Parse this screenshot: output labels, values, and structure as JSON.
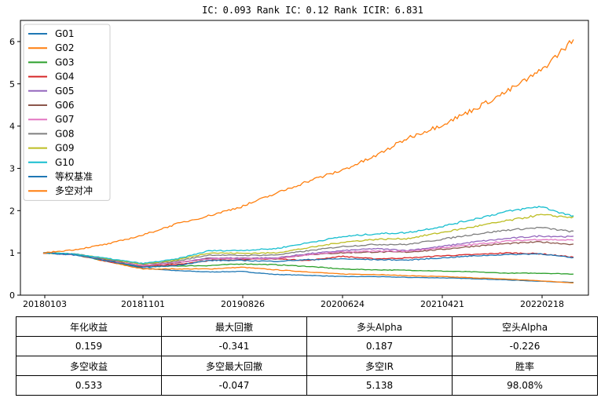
{
  "chart_data": {
    "type": "line",
    "title": "IC：0.093    Rank IC：0.12    Rank ICIR：6.831",
    "xlabel": "",
    "ylabel": "",
    "x_range": [
      "20180103",
      "20220425"
    ],
    "ylim": [
      0,
      6.5
    ],
    "yticks": [
      0,
      1,
      2,
      3,
      4,
      5,
      6
    ],
    "xtick_labels": [
      "20180103",
      "20181101",
      "20190826",
      "20200624",
      "20210421",
      "20220218"
    ],
    "grid": false,
    "legend_position": "top-left",
    "series": [
      {
        "name": "G01",
        "color": "#1f77b4",
        "values": [
          1.0,
          0.97,
          0.8,
          0.64,
          0.58,
          0.55,
          0.56,
          0.49,
          0.47,
          0.44,
          0.44,
          0.42,
          0.41,
          0.39,
          0.36,
          0.33,
          0.3
        ]
      },
      {
        "name": "G02",
        "color": "#ff7f0e",
        "values": [
          1.0,
          0.95,
          0.78,
          0.62,
          0.62,
          0.62,
          0.66,
          0.6,
          0.55,
          0.5,
          0.49,
          0.46,
          0.44,
          0.41,
          0.38,
          0.34,
          0.29
        ]
      },
      {
        "name": "G03",
        "color": "#2ca02c",
        "values": [
          1.0,
          0.96,
          0.79,
          0.67,
          0.69,
          0.7,
          0.74,
          0.72,
          0.68,
          0.62,
          0.6,
          0.59,
          0.57,
          0.55,
          0.52,
          0.52,
          0.5
        ]
      },
      {
        "name": "G04",
        "color": "#d62728",
        "values": [
          1.0,
          0.96,
          0.79,
          0.69,
          0.72,
          0.82,
          0.84,
          0.86,
          0.82,
          0.92,
          0.86,
          0.88,
          0.93,
          0.96,
          1.0,
          0.98,
          0.9
        ]
      },
      {
        "name": "G05",
        "color": "#9467bd",
        "values": [
          1.0,
          0.95,
          0.82,
          0.7,
          0.76,
          0.88,
          0.88,
          0.88,
          0.98,
          1.05,
          1.1,
          1.06,
          1.15,
          1.26,
          1.34,
          1.4,
          1.38
        ]
      },
      {
        "name": "G06",
        "color": "#8c564b",
        "values": [
          1.0,
          0.96,
          0.82,
          0.7,
          0.76,
          0.86,
          0.86,
          0.86,
          0.96,
          1.0,
          1.02,
          1.02,
          1.08,
          1.16,
          1.22,
          1.26,
          1.2
        ]
      },
      {
        "name": "G07",
        "color": "#e377c2",
        "values": [
          1.0,
          0.96,
          0.8,
          0.7,
          0.77,
          0.86,
          0.86,
          0.86,
          0.96,
          1.02,
          1.04,
          1.04,
          1.12,
          1.2,
          1.28,
          1.32,
          1.3
        ]
      },
      {
        "name": "G08",
        "color": "#7f7f7f",
        "values": [
          1.0,
          0.97,
          0.84,
          0.73,
          0.8,
          0.95,
          0.94,
          0.95,
          1.05,
          1.15,
          1.2,
          1.2,
          1.32,
          1.44,
          1.54,
          1.6,
          1.5
        ]
      },
      {
        "name": "G09",
        "color": "#bcbd22",
        "values": [
          1.0,
          0.97,
          0.85,
          0.74,
          0.83,
          1.0,
          0.99,
          1.0,
          1.12,
          1.25,
          1.32,
          1.34,
          1.48,
          1.62,
          1.76,
          1.9,
          1.84
        ]
      },
      {
        "name": "G10",
        "color": "#17becf",
        "values": [
          1.0,
          0.97,
          0.86,
          0.75,
          0.85,
          1.05,
          1.06,
          1.1,
          1.24,
          1.38,
          1.45,
          1.48,
          1.62,
          1.8,
          1.98,
          2.1,
          1.86
        ]
      },
      {
        "name": "等权基准",
        "color": "#1f77b4",
        "values": [
          1.0,
          0.95,
          0.8,
          0.66,
          0.7,
          0.82,
          0.82,
          0.8,
          0.84,
          0.86,
          0.84,
          0.83,
          0.88,
          0.93,
          0.96,
          0.98,
          0.88
        ]
      },
      {
        "name": "多空对冲",
        "color": "#ff7f0e",
        "values": [
          1.0,
          1.08,
          1.22,
          1.42,
          1.68,
          1.88,
          2.1,
          2.4,
          2.7,
          2.95,
          3.28,
          3.72,
          4.02,
          4.4,
          4.82,
          5.3,
          6.05
        ]
      }
    ],
    "table": {
      "rows": [
        [
          "年化收益",
          "最大回撤",
          "多头Alpha",
          "空头Alpha"
        ],
        [
          "0.159",
          "-0.341",
          "0.187",
          "-0.226"
        ],
        [
          "多空收益",
          "多空最大回撤",
          "多空IR",
          "胜率"
        ],
        [
          "0.533",
          "-0.047",
          "5.138",
          "98.08%"
        ]
      ]
    }
  }
}
